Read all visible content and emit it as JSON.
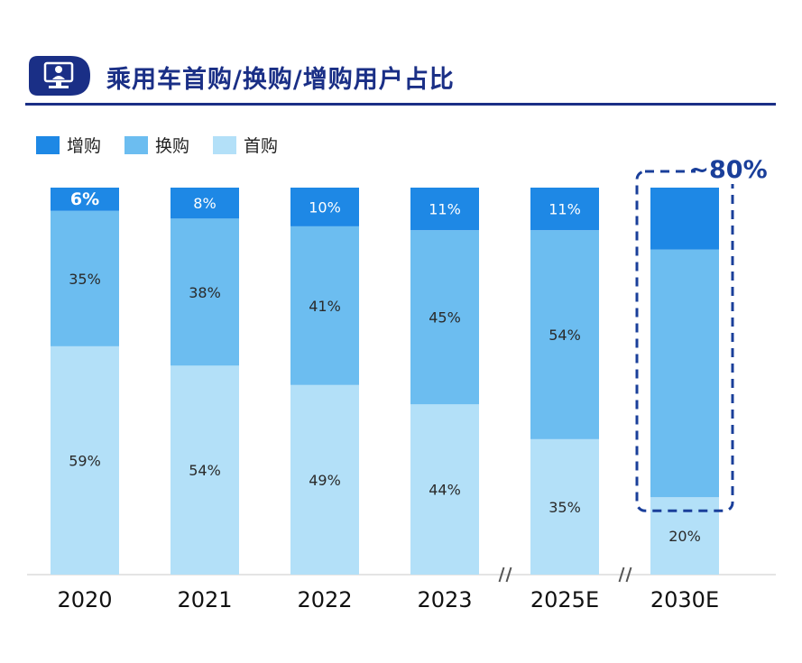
{
  "title": "乘用车首购/换购/增购用户占比",
  "legend": [
    "增购",
    "换购",
    "首购"
  ],
  "colors": {
    "title": "#1a2f86",
    "increase": "#1e88e5",
    "replace": "#6cbdf0",
    "first": "#b3e0f8",
    "dashed": "#1a3f9a",
    "axis": "#555555"
  },
  "chart_data": {
    "type": "bar",
    "stacked": true,
    "categories": [
      "2020",
      "2021",
      "2022",
      "2023",
      "2025E",
      "2030E"
    ],
    "series": [
      {
        "name": "首购",
        "values": [
          59,
          54,
          49,
          44,
          35,
          20
        ],
        "labels": [
          "59%",
          "54%",
          "49%",
          "44%",
          "35%",
          "20%"
        ]
      },
      {
        "name": "换购",
        "values": [
          35,
          38,
          41,
          45,
          54,
          64
        ],
        "labels": [
          "35%",
          "38%",
          "41%",
          "45%",
          "54%",
          ""
        ]
      },
      {
        "name": "增购",
        "values": [
          6,
          8,
          10,
          11,
          11,
          16
        ],
        "labels": [
          "6%",
          "8%",
          "10%",
          "11%",
          "11%",
          ""
        ]
      }
    ],
    "ylim": [
      0,
      100
    ],
    "axis_breaks_before": [
      "2025E",
      "2030E"
    ],
    "annotation": {
      "text": "~80%",
      "category": "2030E",
      "series": [
        "换购",
        "增购"
      ]
    }
  }
}
